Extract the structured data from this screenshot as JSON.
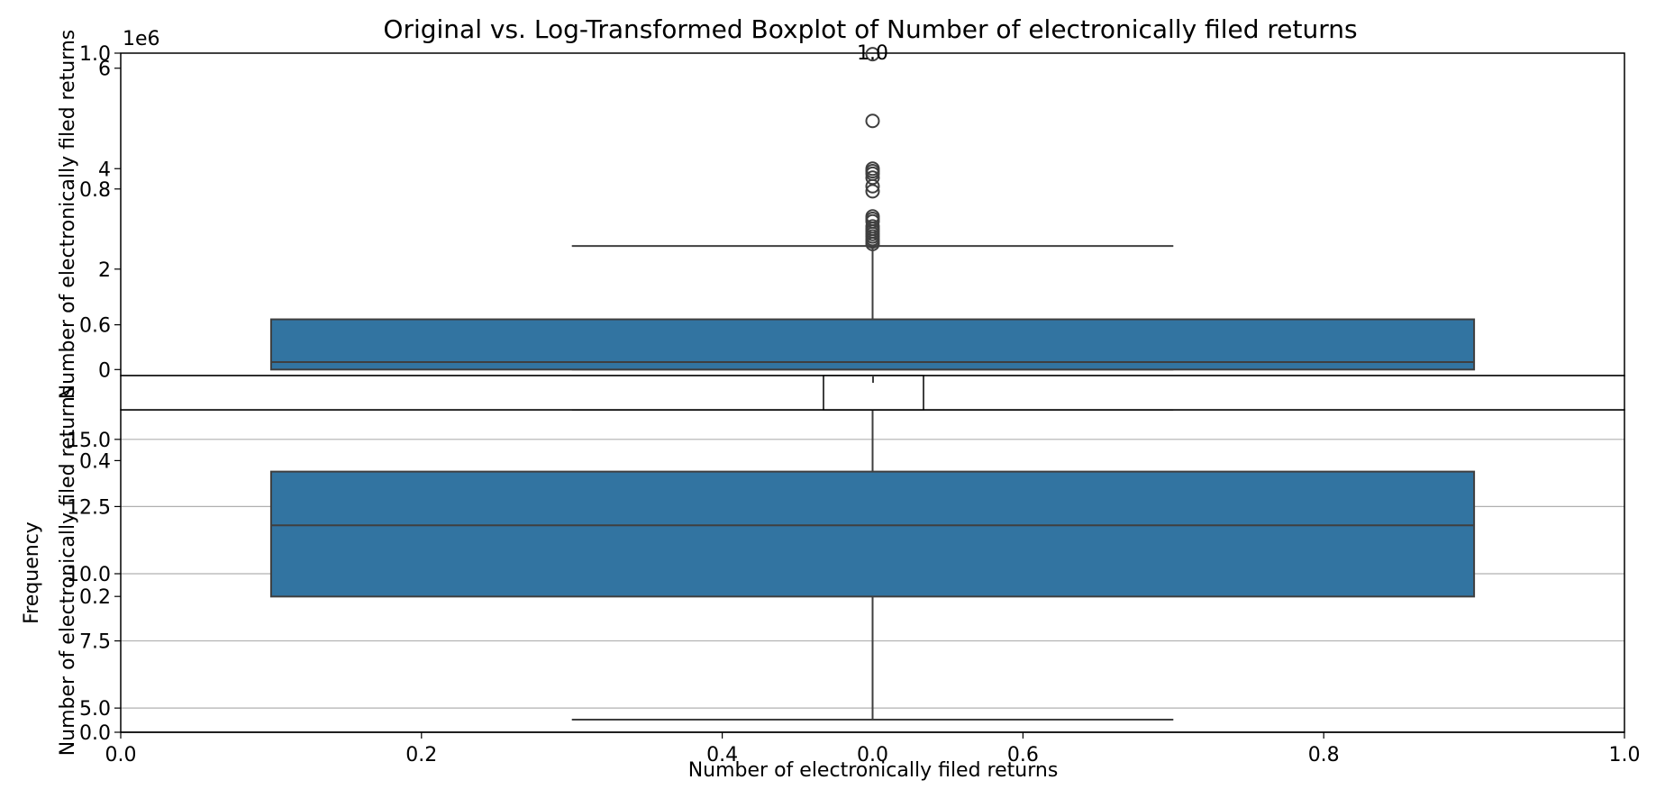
{
  "title": "Original vs. Log-Transformed Boxplot of Number of electronically filed returns",
  "overlay_axes": {
    "xticks": [
      "0.0",
      "0.2",
      "0.4",
      "0.6",
      "0.8",
      "1.0"
    ],
    "yticks": [
      "0.0",
      "0.2",
      "0.4",
      "0.6",
      "0.8",
      "1.0"
    ],
    "ylabel": "Frequency",
    "xlabel": "Number of electronically filed returns"
  },
  "chart_data": [
    {
      "type": "box",
      "ylabel": "Number of electronically filed returns",
      "yticks": [
        "0",
        "2",
        "4",
        "6"
      ],
      "scale_label": "1e6",
      "ylim": [
        -0.12,
        6.3
      ],
      "box": {
        "q1": 0.0,
        "median": 0.15,
        "q3": 1.0,
        "whisker_low": 0.0,
        "whisker_high": 2.46
      },
      "outliers": [
        2.5,
        2.55,
        2.6,
        2.65,
        2.7,
        2.75,
        2.8,
        2.85,
        2.95,
        3.0,
        3.05,
        3.55,
        3.65,
        3.82,
        3.9,
        3.95,
        4.0,
        4.95,
        6.28
      ],
      "xticks": [
        "0.0",
        "0.2",
        "0.4",
        "0.6",
        "0.8",
        "1.0"
      ]
    },
    {
      "type": "box",
      "ylabel": "Number of electronically filed returns",
      "yticks": [
        "5.0",
        "7.5",
        "10.0",
        "12.5",
        "15.0"
      ],
      "ylim": [
        4.1,
        16.1
      ],
      "grid": true,
      "box": {
        "q1": 9.15,
        "median": 11.8,
        "q3": 13.8,
        "whisker_low": 4.57,
        "whisker_high": 16.2
      },
      "outliers": [],
      "xticks": [
        "0.0",
        "0.2",
        "0.4",
        "0.6",
        "0.8",
        "1.0"
      ]
    }
  ]
}
